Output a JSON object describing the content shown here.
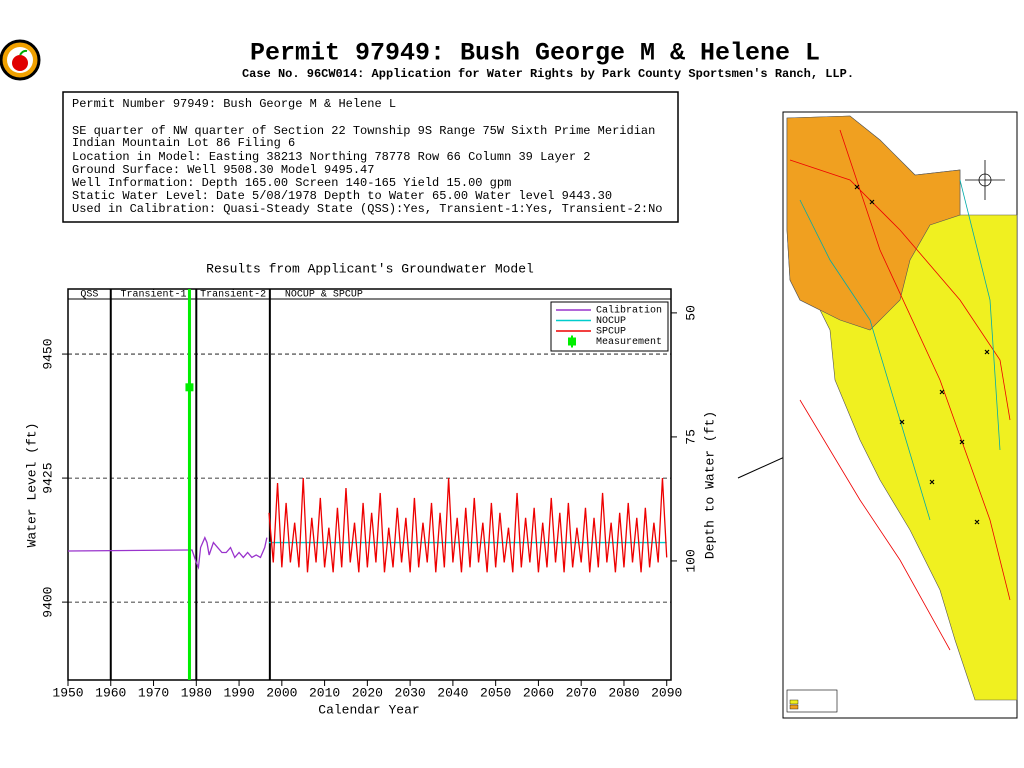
{
  "header": {
    "title": "Permit 97949:  Bush George M & Helene L",
    "subtitle": "Case No. 96CW014: Application for Water Rights by Park County Sportsmen's Ranch, LLP."
  },
  "info": {
    "lines": [
      "Permit Number 97949: Bush George M & Helene L",
      "SE quarter of NW quarter of Section 22 Township 9S Range 75W Sixth Prime Meridian",
      "Indian Mountain Lot 86 Filing 6",
      "Location in Model: Easting 38213 Northing  78778 Row   66 Column 39 Layer 2",
      "Ground Surface: Well   9508.30 Model   9495.47",
      "Well Information: Depth   165.00 Screen 140-165 Yield     15.00 gpm",
      "Static Water Level: Date   5/08/1978 Depth to Water     65.00 Water level  9443.30",
      "Used in Calibration: Quasi-Steady State (QSS):Yes, Transient-1:Yes, Transient-2:No"
    ]
  },
  "chart_data": {
    "type": "line",
    "title": "Results from Applicant's Groundwater Model",
    "xlabel": "Calendar Year",
    "ylabel": "Water Level (ft)",
    "y2label": "Depth to Water (ft)",
    "xlim": [
      1950,
      2091
    ],
    "xticks": [
      1950,
      1960,
      1970,
      1980,
      1990,
      2000,
      2010,
      2020,
      2030,
      2040,
      2050,
      2060,
      2070,
      2080,
      2090
    ],
    "ylim": [
      9384.3,
      9461.1
    ],
    "yticks": [
      9400,
      9425,
      9450
    ],
    "y2lim": [
      124.0,
      47.2
    ],
    "y2ticks": [
      50,
      75,
      100
    ],
    "grid": true,
    "legend": "upper right",
    "periods": [
      {
        "label": "QSS",
        "start": 1950,
        "end": 1960
      },
      {
        "label": "Transient-1",
        "start": 1960,
        "end": 1980
      },
      {
        "label": "Transient-2",
        "start": 1980,
        "end": 1997.2
      },
      {
        "label": "NOCUP & SPCUP",
        "start": 1997.2,
        "end": 2091
      }
    ],
    "series": [
      {
        "name": "Calibration",
        "color": "#9933cc",
        "marker": "line",
        "x": [
          1950,
          1978,
          1979,
          1980,
          1980.5,
          1981,
          1982,
          1982.5,
          1983,
          1984,
          1985,
          1986,
          1987,
          1988,
          1989,
          1990,
          1991,
          1992,
          1993,
          1994,
          1995,
          1996,
          1996.5
        ],
        "values": [
          9410.3,
          9410.5,
          9410.5,
          9408,
          9407,
          9411,
          9413,
          9412,
          9409.5,
          9412,
          9411,
          9410,
          9410,
          9411,
          9409,
          9410,
          9409,
          9410,
          9409,
          9409.5,
          9409,
          9411,
          9413
        ]
      },
      {
        "name": "NOCUP",
        "color": "#00cccc",
        "marker": "line",
        "x": [
          1997,
          2090
        ],
        "values": [
          9412,
          9412
        ]
      },
      {
        "name": "SPCUP",
        "color": "#ee0000",
        "marker": "line",
        "x": [
          1997,
          1998,
          1999,
          2000,
          2001,
          2002,
          2003,
          2004,
          2005,
          2006,
          2007,
          2008,
          2009,
          2010,
          2011,
          2012,
          2013,
          2014,
          2015,
          2016,
          2017,
          2018,
          2019,
          2020,
          2021,
          2022,
          2023,
          2024,
          2025,
          2026,
          2027,
          2028,
          2029,
          2030,
          2031,
          2032,
          2033,
          2034,
          2035,
          2036,
          2037,
          2038,
          2039,
          2040,
          2041,
          2042,
          2043,
          2044,
          2045,
          2046,
          2047,
          2048,
          2049,
          2050,
          2051,
          2052,
          2053,
          2054,
          2055,
          2056,
          2057,
          2058,
          2059,
          2060,
          2061,
          2062,
          2063,
          2064,
          2065,
          2066,
          2067,
          2068,
          2069,
          2070,
          2071,
          2072,
          2073,
          2074,
          2075,
          2076,
          2077,
          2078,
          2079,
          2080,
          2081,
          2082,
          2083,
          2084,
          2085,
          2086,
          2087,
          2088,
          2089,
          2090
        ],
        "values": [
          9418,
          9408,
          9424,
          9407,
          9420,
          9408,
          9416,
          9407,
          9425,
          9406,
          9417,
          9408,
          9421,
          9407,
          9415,
          9406,
          9419,
          9407,
          9423,
          9408,
          9416,
          9406,
          9420,
          9407,
          9418,
          9408,
          9422,
          9406,
          9415,
          9407,
          9419,
          9408,
          9417,
          9406,
          9421,
          9407,
          9416,
          9408,
          9420,
          9406,
          9418,
          9407,
          9425,
          9408,
          9417,
          9406,
          9419,
          9407,
          9421,
          9408,
          9416,
          9406,
          9420,
          9407,
          9418,
          9408,
          9415,
          9406,
          9422,
          9407,
          9417,
          9408,
          9419,
          9406,
          9416,
          9407,
          9421,
          9408,
          9418,
          9406,
          9420,
          9407,
          9415,
          9408,
          9419,
          9406,
          9417,
          9407,
          9422,
          9408,
          9416,
          9406,
          9418,
          9407,
          9420,
          9408,
          9417,
          9406,
          9419,
          9407,
          9416,
          9408,
          9425,
          9409
        ]
      },
      {
        "name": "Measurement",
        "color": "#00ee00",
        "marker": "point",
        "x": [
          1978.4
        ],
        "values": [
          9443.3
        ]
      }
    ]
  }
}
